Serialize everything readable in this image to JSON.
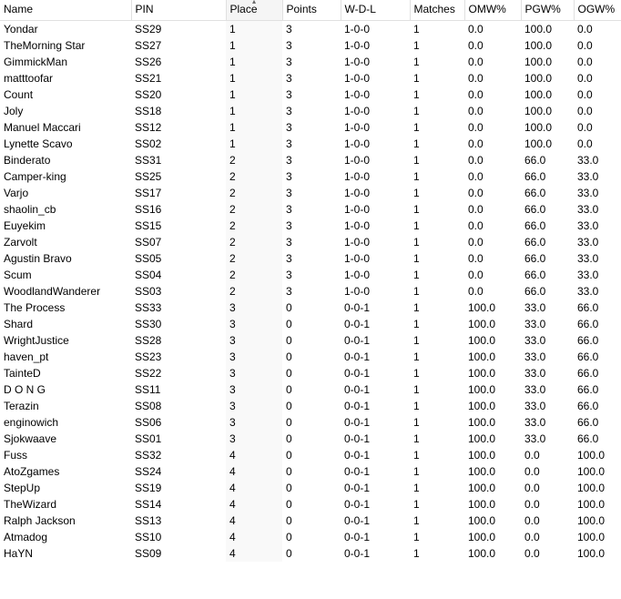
{
  "columns": [
    {
      "key": "name",
      "label": "Name",
      "cls": "col-name",
      "sorted": false
    },
    {
      "key": "pin",
      "label": "PIN",
      "cls": "col-pin",
      "sorted": false
    },
    {
      "key": "place",
      "label": "Place",
      "cls": "col-place",
      "sorted": true
    },
    {
      "key": "points",
      "label": "Points",
      "cls": "col-points",
      "sorted": false
    },
    {
      "key": "wdl",
      "label": "W-D-L",
      "cls": "col-wdl",
      "sorted": false
    },
    {
      "key": "matches",
      "label": "Matches",
      "cls": "col-match",
      "sorted": false
    },
    {
      "key": "omw",
      "label": "OMW%",
      "cls": "col-omw",
      "sorted": false
    },
    {
      "key": "pgw",
      "label": "PGW%",
      "cls": "col-pgw",
      "sorted": false
    },
    {
      "key": "ogw",
      "label": "OGW%",
      "cls": "col-ogw",
      "sorted": false
    }
  ],
  "rows": [
    {
      "name": "Yondar",
      "pin": "SS29",
      "place": "1",
      "points": "3",
      "wdl": "1-0-0",
      "matches": "1",
      "omw": "0.0",
      "pgw": "100.0",
      "ogw": "0.0"
    },
    {
      "name": "TheMorning Star",
      "pin": "SS27",
      "place": "1",
      "points": "3",
      "wdl": "1-0-0",
      "matches": "1",
      "omw": "0.0",
      "pgw": "100.0",
      "ogw": "0.0"
    },
    {
      "name": "GimmickMan",
      "pin": "SS26",
      "place": "1",
      "points": "3",
      "wdl": "1-0-0",
      "matches": "1",
      "omw": "0.0",
      "pgw": "100.0",
      "ogw": "0.0"
    },
    {
      "name": "matttoofar",
      "pin": "SS21",
      "place": "1",
      "points": "3",
      "wdl": "1-0-0",
      "matches": "1",
      "omw": "0.0",
      "pgw": "100.0",
      "ogw": "0.0"
    },
    {
      "name": "Count",
      "pin": "SS20",
      "place": "1",
      "points": "3",
      "wdl": "1-0-0",
      "matches": "1",
      "omw": "0.0",
      "pgw": "100.0",
      "ogw": "0.0"
    },
    {
      "name": "Joly",
      "pin": "SS18",
      "place": "1",
      "points": "3",
      "wdl": "1-0-0",
      "matches": "1",
      "omw": "0.0",
      "pgw": "100.0",
      "ogw": "0.0"
    },
    {
      "name": "Manuel Maccari",
      "pin": "SS12",
      "place": "1",
      "points": "3",
      "wdl": "1-0-0",
      "matches": "1",
      "omw": "0.0",
      "pgw": "100.0",
      "ogw": "0.0"
    },
    {
      "name": "Lynette Scavo",
      "pin": "SS02",
      "place": "1",
      "points": "3",
      "wdl": "1-0-0",
      "matches": "1",
      "omw": "0.0",
      "pgw": "100.0",
      "ogw": "0.0"
    },
    {
      "name": "Binderato",
      "pin": "SS31",
      "place": "2",
      "points": "3",
      "wdl": "1-0-0",
      "matches": "1",
      "omw": "0.0",
      "pgw": "66.0",
      "ogw": "33.0"
    },
    {
      "name": "Camper-king",
      "pin": "SS25",
      "place": "2",
      "points": "3",
      "wdl": "1-0-0",
      "matches": "1",
      "omw": "0.0",
      "pgw": "66.0",
      "ogw": "33.0"
    },
    {
      "name": "Varjo",
      "pin": "SS17",
      "place": "2",
      "points": "3",
      "wdl": "1-0-0",
      "matches": "1",
      "omw": "0.0",
      "pgw": "66.0",
      "ogw": "33.0"
    },
    {
      "name": "shaolin_cb",
      "pin": "SS16",
      "place": "2",
      "points": "3",
      "wdl": "1-0-0",
      "matches": "1",
      "omw": "0.0",
      "pgw": "66.0",
      "ogw": "33.0"
    },
    {
      "name": "Euyekim",
      "pin": "SS15",
      "place": "2",
      "points": "3",
      "wdl": "1-0-0",
      "matches": "1",
      "omw": "0.0",
      "pgw": "66.0",
      "ogw": "33.0"
    },
    {
      "name": "Zarvolt",
      "pin": "SS07",
      "place": "2",
      "points": "3",
      "wdl": "1-0-0",
      "matches": "1",
      "omw": "0.0",
      "pgw": "66.0",
      "ogw": "33.0"
    },
    {
      "name": "Agustin Bravo",
      "pin": "SS05",
      "place": "2",
      "points": "3",
      "wdl": "1-0-0",
      "matches": "1",
      "omw": "0.0",
      "pgw": "66.0",
      "ogw": "33.0"
    },
    {
      "name": "Scum",
      "pin": "SS04",
      "place": "2",
      "points": "3",
      "wdl": "1-0-0",
      "matches": "1",
      "omw": "0.0",
      "pgw": "66.0",
      "ogw": "33.0"
    },
    {
      "name": "WoodlandWanderer",
      "pin": "SS03",
      "place": "2",
      "points": "3",
      "wdl": "1-0-0",
      "matches": "1",
      "omw": "0.0",
      "pgw": "66.0",
      "ogw": "33.0"
    },
    {
      "name": "The Process",
      "pin": "SS33",
      "place": "3",
      "points": "0",
      "wdl": "0-0-1",
      "matches": "1",
      "omw": "100.0",
      "pgw": "33.0",
      "ogw": "66.0"
    },
    {
      "name": "Shard",
      "pin": "SS30",
      "place": "3",
      "points": "0",
      "wdl": "0-0-1",
      "matches": "1",
      "omw": "100.0",
      "pgw": "33.0",
      "ogw": "66.0"
    },
    {
      "name": "WrightJustice",
      "pin": "SS28",
      "place": "3",
      "points": "0",
      "wdl": "0-0-1",
      "matches": "1",
      "omw": "100.0",
      "pgw": "33.0",
      "ogw": "66.0"
    },
    {
      "name": "haven_pt",
      "pin": "SS23",
      "place": "3",
      "points": "0",
      "wdl": "0-0-1",
      "matches": "1",
      "omw": "100.0",
      "pgw": "33.0",
      "ogw": "66.0"
    },
    {
      "name": "TainteD",
      "pin": "SS22",
      "place": "3",
      "points": "0",
      "wdl": "0-0-1",
      "matches": "1",
      "omw": "100.0",
      "pgw": "33.0",
      "ogw": "66.0"
    },
    {
      "name": "D O N G",
      "pin": "SS11",
      "place": "3",
      "points": "0",
      "wdl": "0-0-1",
      "matches": "1",
      "omw": "100.0",
      "pgw": "33.0",
      "ogw": "66.0"
    },
    {
      "name": "Terazin",
      "pin": "SS08",
      "place": "3",
      "points": "0",
      "wdl": "0-0-1",
      "matches": "1",
      "omw": "100.0",
      "pgw": "33.0",
      "ogw": "66.0"
    },
    {
      "name": "enginowich",
      "pin": "SS06",
      "place": "3",
      "points": "0",
      "wdl": "0-0-1",
      "matches": "1",
      "omw": "100.0",
      "pgw": "33.0",
      "ogw": "66.0"
    },
    {
      "name": "Sjokwaave",
      "pin": "SS01",
      "place": "3",
      "points": "0",
      "wdl": "0-0-1",
      "matches": "1",
      "omw": "100.0",
      "pgw": "33.0",
      "ogw": "66.0"
    },
    {
      "name": "Fuss",
      "pin": "SS32",
      "place": "4",
      "points": "0",
      "wdl": "0-0-1",
      "matches": "1",
      "omw": "100.0",
      "pgw": "0.0",
      "ogw": "100.0"
    },
    {
      "name": "AtoZgames",
      "pin": "SS24",
      "place": "4",
      "points": "0",
      "wdl": "0-0-1",
      "matches": "1",
      "omw": "100.0",
      "pgw": "0.0",
      "ogw": "100.0"
    },
    {
      "name": "StepUp",
      "pin": "SS19",
      "place": "4",
      "points": "0",
      "wdl": "0-0-1",
      "matches": "1",
      "omw": "100.0",
      "pgw": "0.0",
      "ogw": "100.0"
    },
    {
      "name": "TheWizard",
      "pin": "SS14",
      "place": "4",
      "points": "0",
      "wdl": "0-0-1",
      "matches": "1",
      "omw": "100.0",
      "pgw": "0.0",
      "ogw": "100.0"
    },
    {
      "name": "Ralph Jackson",
      "pin": "SS13",
      "place": "4",
      "points": "0",
      "wdl": "0-0-1",
      "matches": "1",
      "omw": "100.0",
      "pgw": "0.0",
      "ogw": "100.0"
    },
    {
      "name": "Atmadog",
      "pin": "SS10",
      "place": "4",
      "points": "0",
      "wdl": "0-0-1",
      "matches": "1",
      "omw": "100.0",
      "pgw": "0.0",
      "ogw": "100.0"
    },
    {
      "name": "HaYN",
      "pin": "SS09",
      "place": "4",
      "points": "0",
      "wdl": "0-0-1",
      "matches": "1",
      "omw": "100.0",
      "pgw": "0.0",
      "ogw": "100.0"
    }
  ]
}
